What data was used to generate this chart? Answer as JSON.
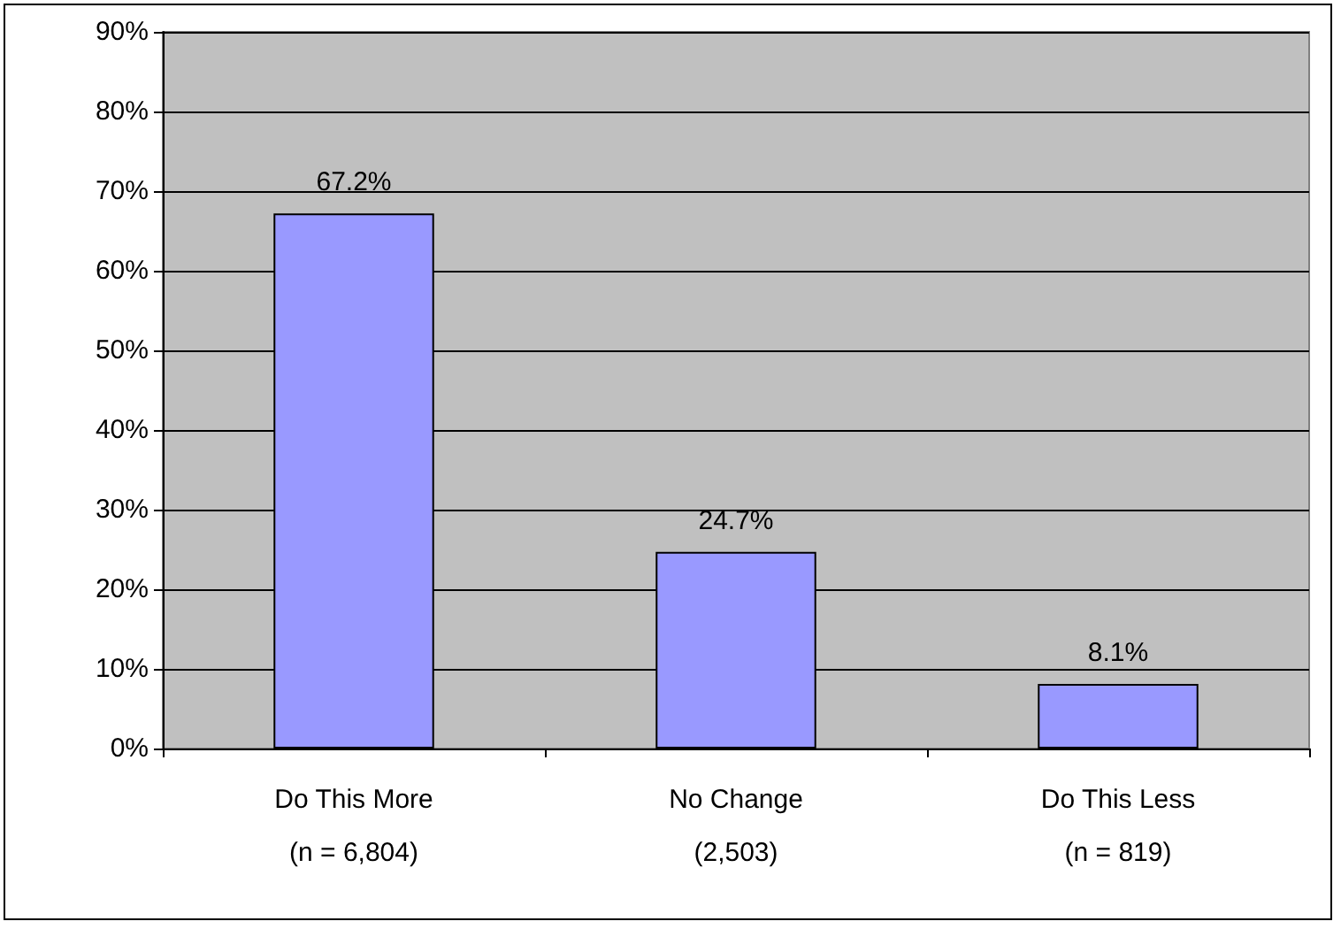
{
  "chart_data": {
    "type": "bar",
    "categories": [
      "Do This More\n(n = 6,804)",
      "No Change\n(2,503)",
      "Do This Less\n(n = 819)"
    ],
    "values": [
      67.2,
      24.7,
      8.1
    ],
    "color": "#9999ff",
    "value_labels": [
      "67.2%",
      "24.7%",
      "8.1%"
    ],
    "ylim": [
      0,
      90
    ],
    "yticks": [
      {
        "value": 0,
        "label": "0%"
      },
      {
        "value": 10,
        "label": "10%"
      },
      {
        "value": 20,
        "label": "20%"
      },
      {
        "value": 30,
        "label": "30%"
      },
      {
        "value": 40,
        "label": "40%"
      },
      {
        "value": 50,
        "label": "50%"
      },
      {
        "value": 60,
        "label": "60%"
      },
      {
        "value": 70,
        "label": "70%"
      },
      {
        "value": 80,
        "label": "80%"
      },
      {
        "value": 90,
        "label": "90%"
      }
    ],
    "grid": "y"
  }
}
